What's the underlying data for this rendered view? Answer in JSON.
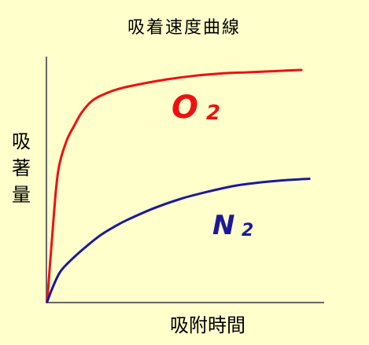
{
  "chart_data": {
    "type": "line",
    "title": "吸着速度曲線",
    "xlabel": "吸附時間",
    "ylabel": "吸著量",
    "xlim": [
      0,
      100
    ],
    "ylim": [
      0,
      100
    ],
    "grid": false,
    "series": [
      {
        "name": "O",
        "subscript": "2",
        "color": "#ee1111",
        "x": [
          0,
          2,
          4,
          7,
          10,
          13,
          17,
          22,
          27,
          35,
          45,
          55,
          65,
          75,
          85,
          95
        ],
        "y": [
          0,
          30,
          55,
          68,
          75,
          81,
          86,
          89,
          91,
          93,
          95,
          96.5,
          97.5,
          98,
          98.5,
          99
        ]
      },
      {
        "name": "N",
        "subscript": "2",
        "color": "#1a1a99",
        "x": [
          0,
          2,
          5,
          10,
          15,
          20,
          25,
          30,
          40,
          50,
          60,
          70,
          80,
          90,
          98
        ],
        "y": [
          0,
          6,
          13,
          19,
          24,
          28.5,
          32,
          35,
          40,
          44,
          47,
          49.5,
          51,
          52,
          52.5
        ]
      }
    ]
  }
}
